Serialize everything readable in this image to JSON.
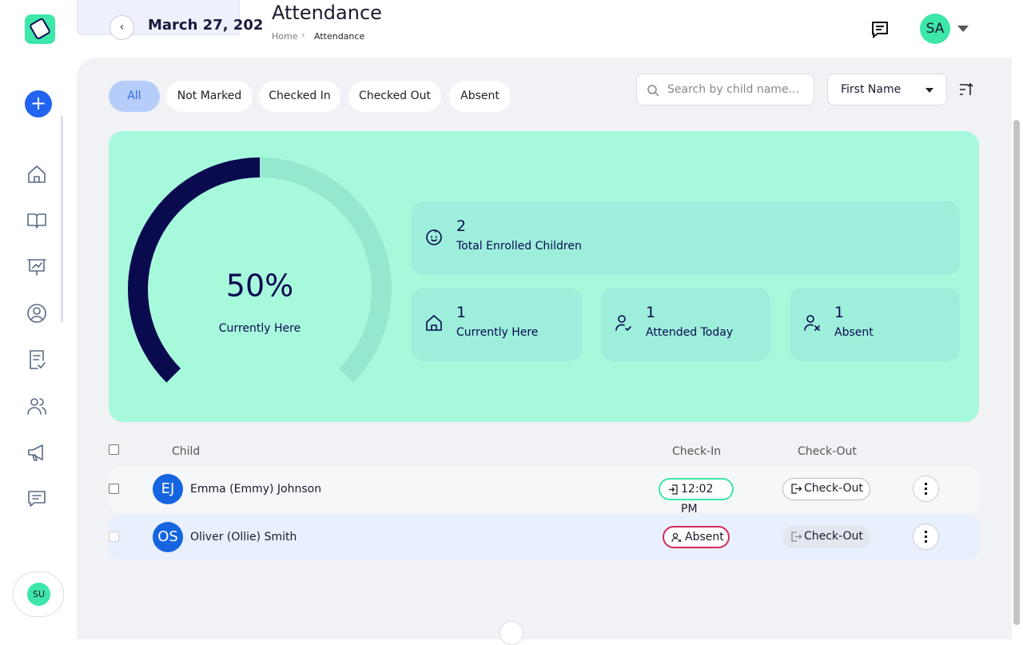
{
  "header": {
    "date": "March 27, 202",
    "title": "Attendance",
    "breadcrumb": [
      "Home",
      "Attendance"
    ],
    "avatar": "SA"
  },
  "filters": [
    "All",
    "Not Marked",
    "Checked In",
    "Checked Out",
    "Absent"
  ],
  "search_placeholder": "Search by child name...",
  "sort": "First Name",
  "gauge": {
    "value": 50,
    "label": "50%",
    "caption": "Currently Here"
  },
  "stats": [
    {
      "value": 2,
      "label": "Total Enrolled Children"
    },
    {
      "value": 1,
      "label": "Currently Here"
    },
    {
      "value": 1,
      "label": "Attended Today"
    },
    {
      "value": 1,
      "label": "Absent"
    }
  ],
  "table": {
    "headers": [
      "Child",
      "Check-In",
      "Check-Out"
    ],
    "rows": [
      {
        "initials": "EJ",
        "name": "Emma (Emmy) Johnson",
        "check_in": "12:02 PM",
        "check_out": "Check-Out"
      },
      {
        "initials": "OS",
        "name": "Oliver (Ollie) Smith",
        "check_in": "Absent",
        "check_out": "Check-Out"
      }
    ]
  },
  "user": "SU"
}
